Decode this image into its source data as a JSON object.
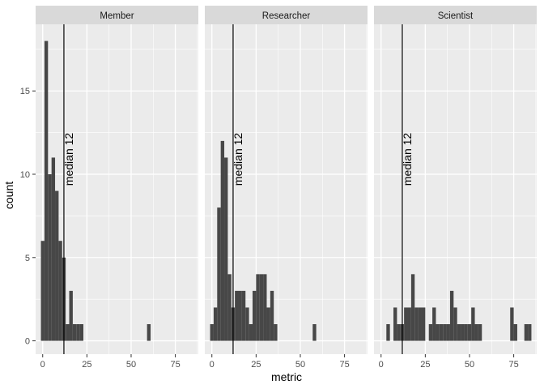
{
  "chart_data": {
    "type": "bar",
    "xlabel": "metric",
    "ylabel": "count",
    "xlim": [
      -4,
      88
    ],
    "ylim": [
      -0.8,
      19
    ],
    "xticks": [
      0,
      25,
      50,
      75
    ],
    "yticks": [
      0,
      5,
      10,
      15
    ],
    "bin_width": 2,
    "grid": true,
    "colors": {
      "bar": "#474747",
      "panel": "#ebebeb",
      "strip": "#d9d9d9",
      "grid": "#ffffff",
      "median_line": "#000000"
    },
    "panels": [
      {
        "name": "Member",
        "median": 12,
        "annotation": "median 12",
        "bins": [
          {
            "x": 0,
            "count": 6
          },
          {
            "x": 2,
            "count": 18
          },
          {
            "x": 4,
            "count": 10
          },
          {
            "x": 6,
            "count": 11
          },
          {
            "x": 8,
            "count": 9
          },
          {
            "x": 10,
            "count": 6
          },
          {
            "x": 12,
            "count": 5
          },
          {
            "x": 14,
            "count": 1
          },
          {
            "x": 16,
            "count": 3
          },
          {
            "x": 18,
            "count": 1
          },
          {
            "x": 20,
            "count": 1
          },
          {
            "x": 22,
            "count": 1
          },
          {
            "x": 60,
            "count": 1
          }
        ]
      },
      {
        "name": "Researcher",
        "median": 12,
        "annotation": "median 12",
        "bins": [
          {
            "x": 0,
            "count": 1
          },
          {
            "x": 2,
            "count": 2
          },
          {
            "x": 4,
            "count": 8
          },
          {
            "x": 6,
            "count": 12
          },
          {
            "x": 8,
            "count": 11
          },
          {
            "x": 10,
            "count": 4
          },
          {
            "x": 12,
            "count": 2
          },
          {
            "x": 14,
            "count": 3
          },
          {
            "x": 16,
            "count": 3
          },
          {
            "x": 18,
            "count": 3
          },
          {
            "x": 20,
            "count": 2
          },
          {
            "x": 22,
            "count": 1
          },
          {
            "x": 24,
            "count": 3
          },
          {
            "x": 26,
            "count": 4
          },
          {
            "x": 28,
            "count": 4
          },
          {
            "x": 30,
            "count": 4
          },
          {
            "x": 32,
            "count": 2
          },
          {
            "x": 34,
            "count": 3
          },
          {
            "x": 36,
            "count": 1
          },
          {
            "x": 58,
            "count": 1
          }
        ]
      },
      {
        "name": "Scientist",
        "median": 12,
        "annotation": "median 12",
        "bins": [
          {
            "x": 4,
            "count": 1
          },
          {
            "x": 8,
            "count": 2
          },
          {
            "x": 10,
            "count": 1
          },
          {
            "x": 12,
            "count": 1
          },
          {
            "x": 14,
            "count": 2
          },
          {
            "x": 16,
            "count": 2
          },
          {
            "x": 18,
            "count": 4
          },
          {
            "x": 20,
            "count": 2
          },
          {
            "x": 22,
            "count": 2
          },
          {
            "x": 24,
            "count": 2
          },
          {
            "x": 28,
            "count": 1
          },
          {
            "x": 30,
            "count": 2
          },
          {
            "x": 32,
            "count": 1
          },
          {
            "x": 34,
            "count": 1
          },
          {
            "x": 36,
            "count": 1
          },
          {
            "x": 38,
            "count": 1
          },
          {
            "x": 40,
            "count": 3
          },
          {
            "x": 42,
            "count": 2
          },
          {
            "x": 44,
            "count": 1
          },
          {
            "x": 46,
            "count": 1
          },
          {
            "x": 48,
            "count": 1
          },
          {
            "x": 50,
            "count": 1
          },
          {
            "x": 52,
            "count": 2
          },
          {
            "x": 54,
            "count": 1
          },
          {
            "x": 56,
            "count": 1
          },
          {
            "x": 74,
            "count": 2
          },
          {
            "x": 76,
            "count": 1
          },
          {
            "x": 82,
            "count": 1
          },
          {
            "x": 84,
            "count": 1
          }
        ]
      }
    ]
  }
}
